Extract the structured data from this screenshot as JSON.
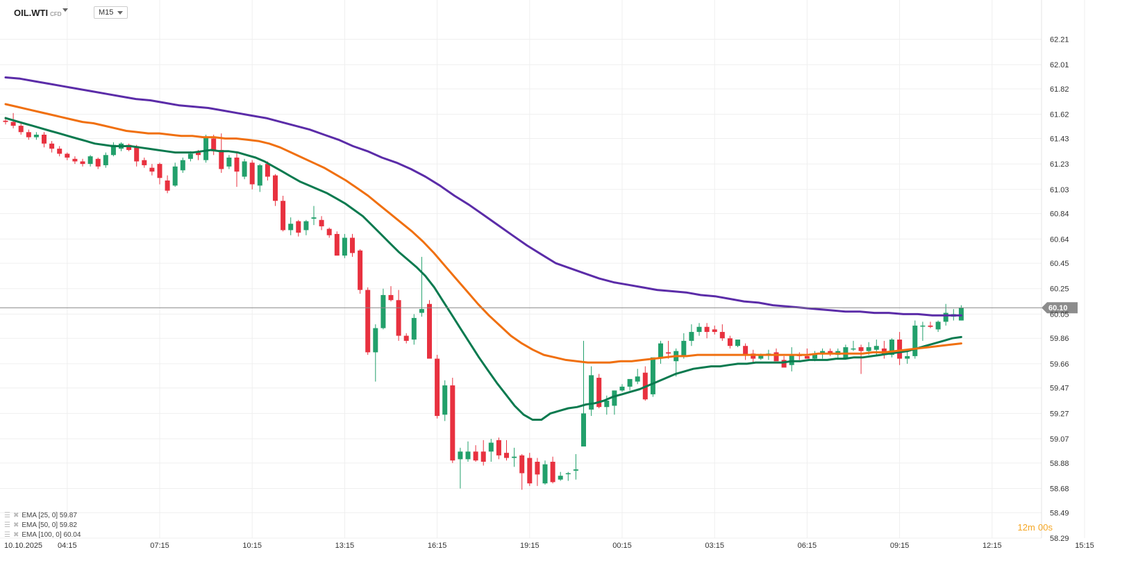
{
  "symbol": {
    "name": "OIL.WTI",
    "type": "CFD"
  },
  "timeframe": "M15",
  "current_price_label": "60.10",
  "countdown": {
    "minutes": "12",
    "minutes_unit": "m",
    "seconds": "00",
    "seconds_unit": "s"
  },
  "legend": [
    {
      "label": "EMA",
      "params": "[25, 0]",
      "value": "59.87",
      "color": "#0a7a4f"
    },
    {
      "label": "EMA",
      "params": "[50, 0]",
      "value": "59.82",
      "color": "#f07010"
    },
    {
      "label": "EMA",
      "params": "[100, 0]",
      "value": "60.04",
      "color": "#5b2ca8"
    }
  ],
  "colors": {
    "up": "#22a06b",
    "down": "#e8313f",
    "ema25": "#0a7a4f",
    "ema50": "#f07010",
    "ema100": "#5b2ca8",
    "price_line": "#888888"
  },
  "chart_data": {
    "type": "candlestick",
    "ylim": [
      58.29,
      62.3
    ],
    "y_ticks": [
      58.29,
      58.49,
      58.68,
      58.88,
      59.07,
      59.27,
      59.47,
      59.66,
      59.86,
      60.05,
      60.25,
      60.45,
      60.64,
      60.84,
      61.03,
      61.23,
      61.43,
      61.62,
      61.82,
      62.01,
      62.21
    ],
    "x_ticks": [
      {
        "i": 0,
        "label": "10.10.2025"
      },
      {
        "i": 8,
        "label": "04:15"
      },
      {
        "i": 20,
        "label": "07:15"
      },
      {
        "i": 32,
        "label": "10:15"
      },
      {
        "i": 44,
        "label": "13:15"
      },
      {
        "i": 56,
        "label": "16:15"
      },
      {
        "i": 68,
        "label": "19:15"
      },
      {
        "i": 80,
        "label": "00:15"
      },
      {
        "i": 92,
        "label": "03:15"
      },
      {
        "i": 104,
        "label": "06:15"
      },
      {
        "i": 116,
        "label": "09:15"
      },
      {
        "i": 128,
        "label": "12:15"
      },
      {
        "i": 140,
        "label": "15:15"
      }
    ],
    "current_price": 60.1,
    "candles": [
      [
        61.57,
        61.6,
        61.54,
        61.56
      ],
      [
        61.56,
        61.63,
        61.51,
        61.53
      ],
      [
        61.53,
        61.55,
        61.46,
        61.48
      ],
      [
        61.48,
        61.5,
        61.42,
        61.44
      ],
      [
        61.44,
        61.48,
        61.42,
        61.46
      ],
      [
        61.46,
        61.48,
        61.36,
        61.39
      ],
      [
        61.39,
        61.41,
        61.32,
        61.35
      ],
      [
        61.35,
        61.37,
        61.29,
        61.31
      ],
      [
        61.31,
        61.32,
        61.26,
        61.28
      ],
      [
        61.27,
        61.29,
        61.23,
        61.25
      ],
      [
        61.25,
        61.27,
        61.21,
        61.23
      ],
      [
        61.23,
        61.3,
        61.21,
        61.29
      ],
      [
        61.27,
        61.28,
        61.19,
        61.21
      ],
      [
        61.22,
        61.32,
        61.2,
        61.3
      ],
      [
        61.3,
        61.4,
        61.29,
        61.38
      ],
      [
        61.35,
        61.4,
        61.33,
        61.39
      ],
      [
        61.38,
        61.39,
        61.33,
        61.34
      ],
      [
        61.37,
        61.38,
        61.21,
        61.25
      ],
      [
        61.26,
        61.28,
        61.2,
        61.22
      ],
      [
        61.2,
        61.23,
        61.14,
        61.17
      ],
      [
        61.23,
        61.24,
        61.07,
        61.12
      ],
      [
        61.1,
        61.14,
        61.0,
        61.02
      ],
      [
        61.06,
        61.24,
        61.05,
        61.21
      ],
      [
        61.18,
        61.28,
        61.16,
        61.26
      ],
      [
        61.27,
        61.33,
        61.25,
        61.31
      ],
      [
        61.32,
        61.34,
        61.26,
        61.3
      ],
      [
        61.26,
        61.46,
        61.24,
        61.44
      ],
      [
        61.43,
        61.46,
        61.3,
        61.33
      ],
      [
        61.34,
        61.47,
        61.16,
        61.19
      ],
      [
        61.21,
        61.3,
        61.19,
        61.28
      ],
      [
        61.28,
        61.33,
        61.05,
        61.17
      ],
      [
        61.13,
        61.27,
        61.11,
        61.25
      ],
      [
        61.24,
        61.26,
        61.03,
        61.07
      ],
      [
        61.06,
        61.23,
        61.01,
        61.22
      ],
      [
        61.23,
        61.25,
        61.1,
        61.13
      ],
      [
        61.14,
        61.15,
        60.9,
        60.94
      ],
      [
        60.94,
        60.98,
        60.7,
        60.71
      ],
      [
        60.71,
        60.81,
        60.67,
        60.76
      ],
      [
        60.78,
        60.79,
        60.66,
        60.69
      ],
      [
        60.71,
        60.79,
        60.67,
        60.78
      ],
      [
        60.8,
        60.9,
        60.75,
        60.81
      ],
      [
        60.79,
        60.82,
        60.71,
        60.74
      ],
      [
        60.72,
        60.73,
        60.65,
        60.67
      ],
      [
        60.68,
        60.7,
        60.51,
        60.51
      ],
      [
        60.51,
        60.68,
        60.49,
        60.65
      ],
      [
        60.65,
        60.68,
        60.5,
        60.53
      ],
      [
        60.55,
        60.56,
        60.21,
        60.24
      ],
      [
        60.24,
        60.26,
        59.73,
        59.75
      ],
      [
        59.75,
        59.97,
        59.52,
        59.94
      ],
      [
        59.94,
        60.25,
        59.93,
        60.2
      ],
      [
        60.2,
        60.27,
        60.15,
        60.16
      ],
      [
        60.16,
        60.24,
        59.84,
        59.88
      ],
      [
        59.88,
        59.9,
        59.82,
        59.84
      ],
      [
        59.85,
        60.05,
        59.81,
        60.02
      ],
      [
        60.06,
        60.5,
        60.03,
        60.09
      ],
      [
        60.13,
        60.16,
        59.7,
        59.7
      ],
      [
        59.7,
        59.73,
        59.23,
        59.25
      ],
      [
        59.26,
        59.53,
        59.21,
        59.49
      ],
      [
        59.49,
        59.55,
        58.88,
        58.9
      ],
      [
        58.91,
        59.0,
        58.68,
        58.97
      ],
      [
        58.91,
        59.05,
        58.89,
        58.97
      ],
      [
        58.97,
        59.02,
        58.89,
        58.9
      ],
      [
        58.97,
        59.06,
        58.86,
        58.89
      ],
      [
        58.97,
        59.07,
        58.89,
        59.04
      ],
      [
        59.06,
        59.08,
        58.91,
        58.94
      ],
      [
        58.96,
        59.06,
        58.9,
        58.92
      ],
      [
        58.92,
        59.0,
        58.85,
        58.93
      ],
      [
        58.94,
        58.95,
        58.67,
        58.8
      ],
      [
        58.92,
        58.96,
        58.7,
        58.72
      ],
      [
        58.89,
        58.92,
        58.7,
        58.79
      ],
      [
        58.72,
        58.9,
        58.71,
        58.87
      ],
      [
        58.89,
        58.93,
        58.72,
        58.73
      ],
      [
        58.75,
        58.81,
        58.74,
        58.78
      ],
      [
        58.8,
        58.81,
        58.74,
        58.8
      ],
      [
        58.82,
        58.95,
        58.75,
        58.83
      ],
      [
        59.01,
        59.84,
        59.05,
        59.27
      ],
      [
        59.3,
        59.64,
        59.25,
        59.57
      ],
      [
        59.55,
        59.58,
        59.31,
        59.32
      ],
      [
        59.32,
        59.41,
        59.26,
        59.37
      ],
      [
        59.33,
        59.45,
        59.26,
        59.45
      ],
      [
        59.45,
        59.5,
        59.44,
        59.48
      ],
      [
        59.48,
        59.51,
        59.45,
        59.54
      ],
      [
        59.52,
        59.62,
        59.5,
        59.56
      ],
      [
        59.59,
        59.64,
        59.37,
        59.38
      ],
      [
        59.42,
        59.69,
        59.4,
        59.71
      ],
      [
        59.7,
        59.84,
        59.66,
        59.82
      ],
      [
        59.75,
        59.84,
        59.7,
        59.74
      ],
      [
        59.68,
        59.78,
        59.56,
        59.76
      ],
      [
        59.72,
        59.9,
        59.7,
        59.84
      ],
      [
        59.84,
        59.97,
        59.8,
        59.91
      ],
      [
        59.91,
        59.98,
        59.88,
        59.95
      ],
      [
        59.95,
        59.98,
        59.86,
        59.91
      ],
      [
        59.93,
        59.96,
        59.89,
        59.91
      ],
      [
        59.91,
        59.97,
        59.84,
        59.86
      ],
      [
        59.86,
        59.88,
        59.78,
        59.8
      ],
      [
        59.8,
        59.85,
        59.79,
        59.85
      ],
      [
        59.8,
        59.82,
        59.69,
        59.73
      ],
      [
        59.74,
        59.77,
        59.66,
        59.7
      ],
      [
        59.7,
        59.74,
        59.69,
        59.73
      ],
      [
        59.73,
        59.77,
        59.69,
        59.74
      ],
      [
        59.75,
        59.78,
        59.69,
        59.68
      ],
      [
        59.69,
        59.72,
        59.65,
        59.63
      ],
      [
        59.65,
        59.79,
        59.6,
        59.73
      ],
      [
        59.73,
        59.75,
        59.69,
        59.72
      ],
      [
        59.72,
        59.78,
        59.7,
        59.7
      ],
      [
        59.7,
        59.76,
        59.68,
        59.74
      ],
      [
        59.74,
        59.78,
        59.7,
        59.76
      ],
      [
        59.76,
        59.78,
        59.72,
        59.74
      ],
      [
        59.73,
        59.78,
        59.7,
        59.76
      ],
      [
        59.7,
        59.81,
        59.7,
        59.79
      ],
      [
        59.78,
        59.84,
        59.76,
        59.78
      ],
      [
        59.79,
        59.81,
        59.58,
        59.76
      ],
      [
        59.76,
        59.83,
        59.73,
        59.79
      ],
      [
        59.77,
        59.85,
        59.73,
        59.8
      ],
      [
        59.78,
        59.84,
        59.7,
        59.73
      ],
      [
        59.73,
        59.86,
        59.71,
        59.85
      ],
      [
        59.85,
        59.91,
        59.65,
        59.7
      ],
      [
        59.7,
        59.76,
        59.66,
        59.72
      ],
      [
        59.72,
        60.0,
        59.7,
        59.96
      ],
      [
        59.96,
        59.99,
        59.84,
        59.96
      ],
      [
        59.96,
        59.99,
        59.94,
        59.95
      ],
      [
        59.93,
        60.0,
        59.91,
        59.99
      ],
      [
        59.99,
        60.13,
        59.96,
        60.06
      ],
      [
        60.03,
        60.09,
        60.0,
        60.05
      ],
      [
        60.0,
        60.12,
        60.0,
        60.1
      ]
    ],
    "series": [
      {
        "name": "EMA [25, 0]",
        "values": [
          61.59,
          61.57,
          61.55,
          61.53,
          61.51,
          61.49,
          61.47,
          61.45,
          61.43,
          61.41,
          61.39,
          61.38,
          61.37,
          61.37,
          61.37,
          61.36,
          61.35,
          61.34,
          61.33,
          61.32,
          61.32,
          61.32,
          61.33,
          61.34,
          61.33,
          61.33,
          61.32,
          61.3,
          61.28,
          61.25,
          61.21,
          61.17,
          61.13,
          61.09,
          61.06,
          61.03,
          61.0,
          60.96,
          60.92,
          60.87,
          60.82,
          60.75,
          60.68,
          60.61,
          60.54,
          60.48,
          60.42,
          60.35,
          60.26,
          60.15,
          60.04,
          59.93,
          59.82,
          59.71,
          59.61,
          59.51,
          59.42,
          59.33,
          59.26,
          59.22,
          59.22,
          59.27,
          59.29,
          59.31,
          59.32,
          59.34,
          59.35,
          59.37,
          59.4,
          59.42,
          59.44,
          59.46,
          59.49,
          59.52,
          59.55,
          59.58,
          59.6,
          59.62,
          59.63,
          59.64,
          59.64,
          59.65,
          59.66,
          59.66,
          59.67,
          59.67,
          59.67,
          59.67,
          59.68,
          59.68,
          59.69,
          59.69,
          59.69,
          59.7,
          59.7,
          59.71,
          59.71,
          59.72,
          59.73,
          59.74,
          59.75,
          59.76,
          59.78,
          59.8,
          59.82,
          59.84,
          59.86,
          59.87
        ]
      },
      {
        "name": "EMA [50, 0]",
        "values": [
          61.7,
          61.68,
          61.66,
          61.64,
          61.62,
          61.6,
          61.58,
          61.56,
          61.55,
          61.53,
          61.51,
          61.49,
          61.48,
          61.47,
          61.47,
          61.46,
          61.45,
          61.45,
          61.44,
          61.44,
          61.43,
          61.43,
          61.42,
          61.41,
          61.39,
          61.36,
          61.32,
          61.28,
          61.24,
          61.2,
          61.15,
          61.1,
          61.04,
          60.98,
          60.91,
          60.84,
          60.77,
          60.7,
          60.62,
          60.53,
          60.43,
          60.33,
          60.23,
          60.13,
          60.04,
          59.96,
          59.88,
          59.82,
          59.77,
          59.73,
          59.71,
          59.69,
          59.68,
          59.67,
          59.67,
          59.67,
          59.68,
          59.68,
          59.69,
          59.7,
          59.71,
          59.72,
          59.72,
          59.73,
          59.73,
          59.73,
          59.73,
          59.73,
          59.73,
          59.73,
          59.73,
          59.73,
          59.73,
          59.73,
          59.74,
          59.74,
          59.74,
          59.74,
          59.74,
          59.75,
          59.75,
          59.76,
          59.77,
          59.78,
          59.79,
          59.8,
          59.81,
          59.82
        ]
      },
      {
        "name": "EMA [100, 0]",
        "values": [
          61.91,
          61.9,
          61.88,
          61.86,
          61.84,
          61.82,
          61.8,
          61.78,
          61.76,
          61.74,
          61.73,
          61.71,
          61.69,
          61.68,
          61.67,
          61.65,
          61.63,
          61.61,
          61.59,
          61.56,
          61.53,
          61.5,
          61.46,
          61.42,
          61.37,
          61.33,
          61.28,
          61.24,
          61.19,
          61.13,
          61.06,
          60.98,
          60.91,
          60.83,
          60.75,
          60.67,
          60.59,
          60.52,
          60.45,
          60.41,
          60.37,
          60.33,
          60.3,
          60.28,
          60.26,
          60.24,
          60.23,
          60.22,
          60.2,
          60.19,
          60.17,
          60.15,
          60.14,
          60.12,
          60.11,
          60.1,
          60.09,
          60.08,
          60.07,
          60.07,
          60.06,
          60.06,
          60.05,
          60.05,
          60.04,
          60.04,
          60.04
        ]
      }
    ]
  }
}
